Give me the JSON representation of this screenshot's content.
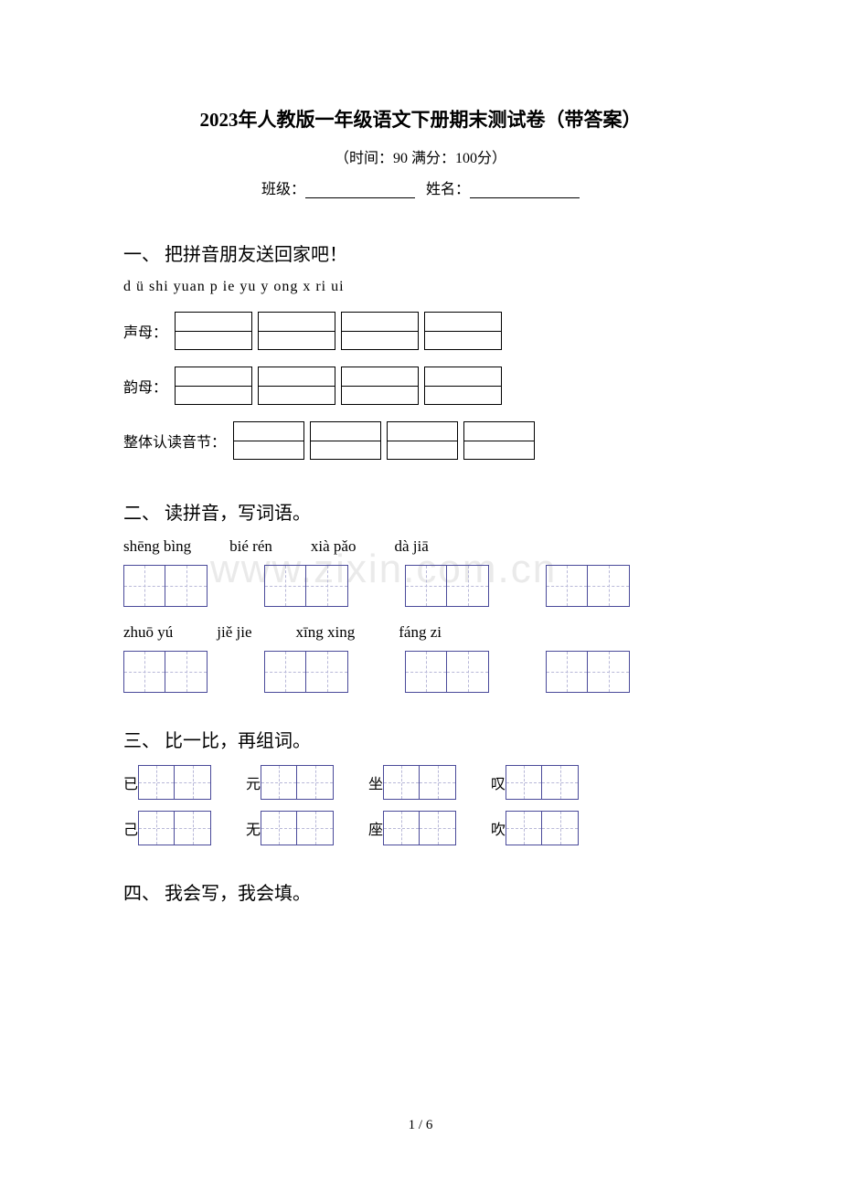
{
  "title": "2023年人教版一年级语文下册期末测试卷（带答案）",
  "subtitle": "（时间：90   满分：100分）",
  "info": {
    "class_label": "班级：",
    "name_label": "姓名："
  },
  "section1": {
    "heading": "一、 把拼音朋友送回家吧！",
    "pinyin_list": "d  ü  shi  yuan  p  ie  yu  y  ong  x  ri  ui",
    "cat1": "声母：",
    "cat2": "韵母：",
    "cat3": "整体认读音节："
  },
  "section2": {
    "heading": "二、 读拼音，写词语。",
    "row1": [
      "shēng bìng",
      "bié  rén",
      "xià  pǎo",
      "dà   jiā"
    ],
    "row2": [
      "zhuō  yú",
      "jiě   jie",
      "xīng xing",
      "fáng   zi"
    ]
  },
  "section3": {
    "heading": "三、 比一比，再组词。",
    "row1": [
      "已",
      "元",
      "坐",
      "叹"
    ],
    "row2": [
      "己",
      "无",
      "座",
      "吹"
    ]
  },
  "section4": {
    "heading": "四、 我会写，我会填。"
  },
  "watermark": "www.zixin.com.cn",
  "footer": "1 / 6",
  "colors": {
    "text": "#000000",
    "box_border": "#4a4a9a",
    "dash": "#b8b8d8",
    "watermark": "#eaeaea",
    "background": "#ffffff"
  }
}
